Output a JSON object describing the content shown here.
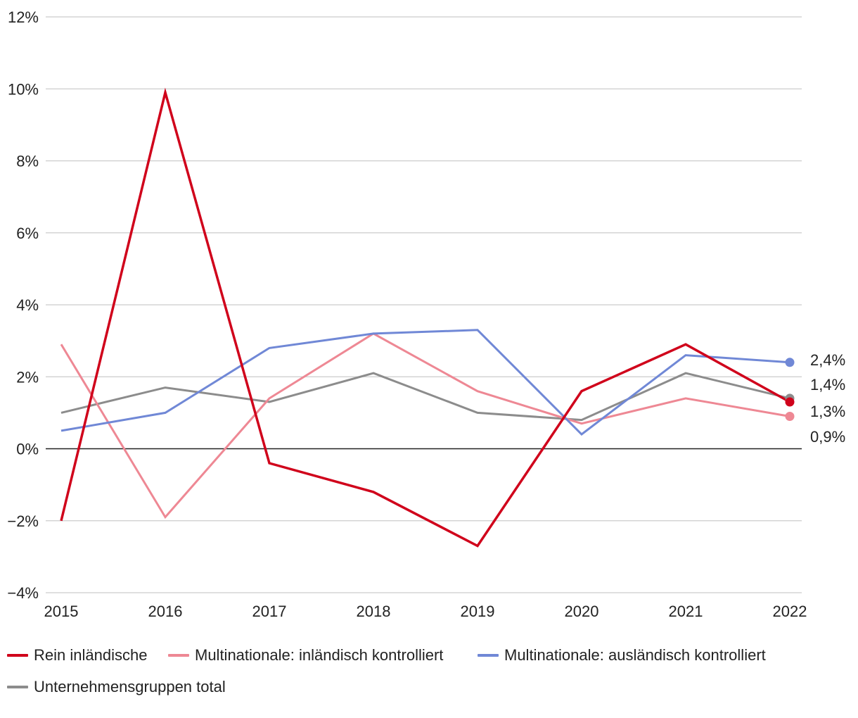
{
  "chart_data": {
    "type": "line",
    "title": "",
    "xlabel": "",
    "ylabel": "",
    "categories": [
      "2015",
      "2016",
      "2017",
      "2018",
      "2019",
      "2020",
      "2021",
      "2022"
    ],
    "ylim": [
      -4,
      12
    ],
    "yticks": [
      -4,
      -2,
      0,
      2,
      4,
      6,
      8,
      10,
      12
    ],
    "ytick_labels": [
      "−4%",
      "−2%",
      "0%",
      "2%",
      "4%",
      "6%",
      "8%",
      "10%",
      "12%"
    ],
    "grid": true,
    "series": [
      {
        "name": "Rein inländische",
        "color": "#d0021b",
        "values": [
          -2.0,
          9.9,
          -0.4,
          -1.2,
          -2.7,
          1.6,
          2.9,
          1.3
        ]
      },
      {
        "name": "Multinationale: inländisch kontrolliert",
        "color": "#ee8894",
        "values": [
          2.9,
          -1.9,
          1.4,
          3.2,
          1.6,
          0.7,
          1.4,
          0.9
        ]
      },
      {
        "name": "Multinationale: ausländisch kontrolliert",
        "color": "#7088d6",
        "values": [
          0.5,
          1.0,
          2.8,
          3.2,
          3.3,
          0.4,
          2.6,
          2.4
        ]
      },
      {
        "name": "Unternehmensgruppen total",
        "color": "#8c8c8c",
        "values": [
          1.0,
          1.7,
          1.3,
          2.1,
          1.0,
          0.8,
          2.1,
          1.4
        ]
      }
    ],
    "end_labels": [
      "2,4%",
      "1,4%",
      "1,3%",
      "0,9%"
    ],
    "legend_position": "bottom"
  }
}
